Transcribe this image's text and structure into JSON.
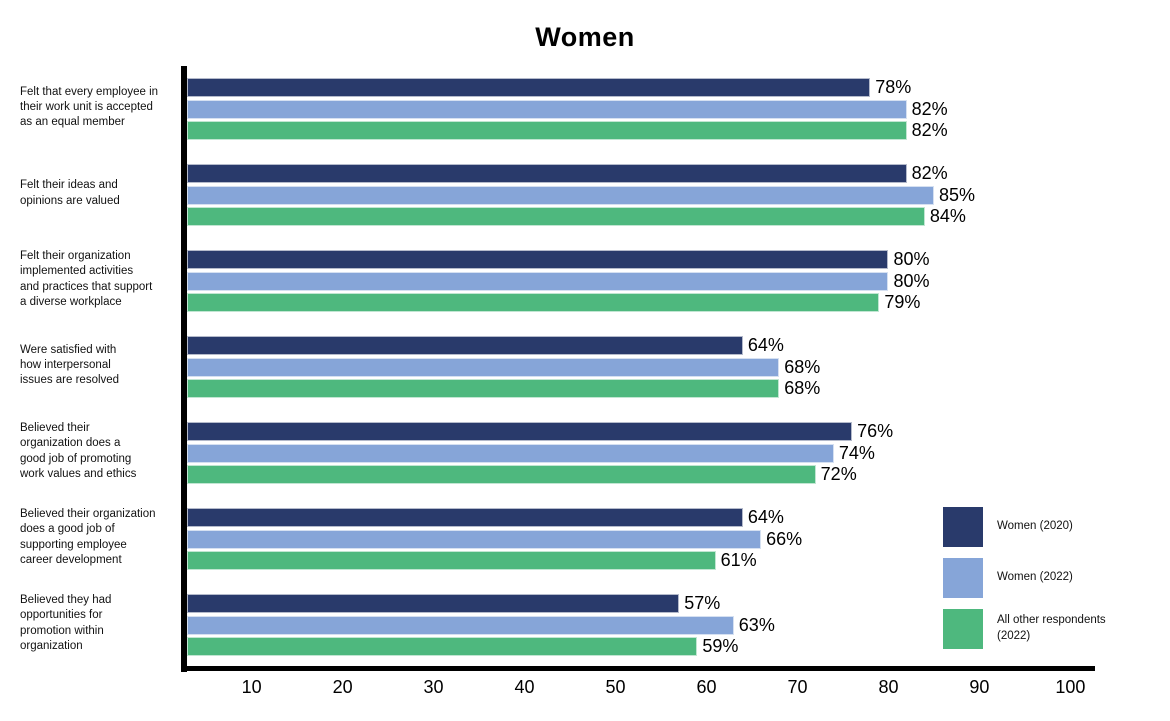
{
  "chart_data": {
    "type": "bar",
    "orientation": "horizontal",
    "title": "Women",
    "categories": [
      "Felt that every employee in\ntheir work unit is accepted\nas an equal member",
      "Felt their ideas and\nopinions are valued",
      "Felt their organization\nimplemented activities\nand practices that support\na diverse workplace",
      "Were satisfied with\nhow interpersonal\nissues are resolved",
      "Believed their\norganization does a\ngood job of promoting\nwork values and ethics",
      "Believed their organization\ndoes a good job of\nsupporting employee\ncareer development",
      "Believed they had\nopportunities for\npromotion within\norganization"
    ],
    "series": [
      {
        "name": "Women (2020)",
        "color": "#293a6b",
        "values": [
          78,
          82,
          80,
          64,
          76,
          64,
          57
        ]
      },
      {
        "name": "Women (2022)",
        "color": "#86a5d8",
        "values": [
          82,
          85,
          80,
          68,
          74,
          66,
          63
        ]
      },
      {
        "name": "All other respondents (2022)",
        "color": "#4eb87e",
        "values": [
          82,
          84,
          79,
          68,
          72,
          61,
          59
        ]
      }
    ],
    "value_suffix": "%",
    "xticks": [
      10,
      20,
      30,
      40,
      50,
      60,
      70,
      80,
      90,
      100
    ],
    "axis_range": [
      2.9,
      102.7
    ],
    "grid": false,
    "legend_position": "bottom-right",
    "data_labels": true,
    "axis_color": "#000000"
  }
}
